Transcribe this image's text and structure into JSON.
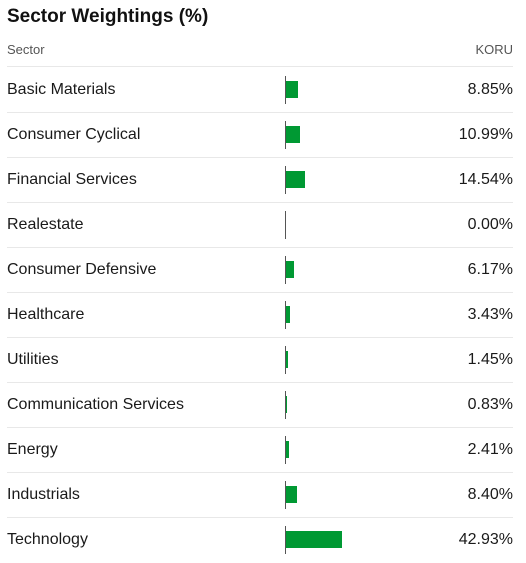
{
  "title": "Sector Weightings (%)",
  "header": {
    "sector_label": "Sector",
    "fund_label": "KORU"
  },
  "colors": {
    "bar": "#009933",
    "axis": "#555555"
  },
  "rows": [
    {
      "sector": "Basic Materials",
      "weight": 8.85,
      "display": "8.85%"
    },
    {
      "sector": "Consumer Cyclical",
      "weight": 10.99,
      "display": "10.99%"
    },
    {
      "sector": "Financial Services",
      "weight": 14.54,
      "display": "14.54%"
    },
    {
      "sector": "Realestate",
      "weight": 0.0,
      "display": "0.00%"
    },
    {
      "sector": "Consumer Defensive",
      "weight": 6.17,
      "display": "6.17%"
    },
    {
      "sector": "Healthcare",
      "weight": 3.43,
      "display": "3.43%"
    },
    {
      "sector": "Utilities",
      "weight": 1.45,
      "display": "1.45%"
    },
    {
      "sector": "Communication Services",
      "weight": 0.83,
      "display": "0.83%"
    },
    {
      "sector": "Energy",
      "weight": 2.41,
      "display": "2.41%"
    },
    {
      "sector": "Industrials",
      "weight": 8.4,
      "display": "8.40%"
    },
    {
      "sector": "Technology",
      "weight": 42.93,
      "display": "42.93%"
    }
  ]
}
